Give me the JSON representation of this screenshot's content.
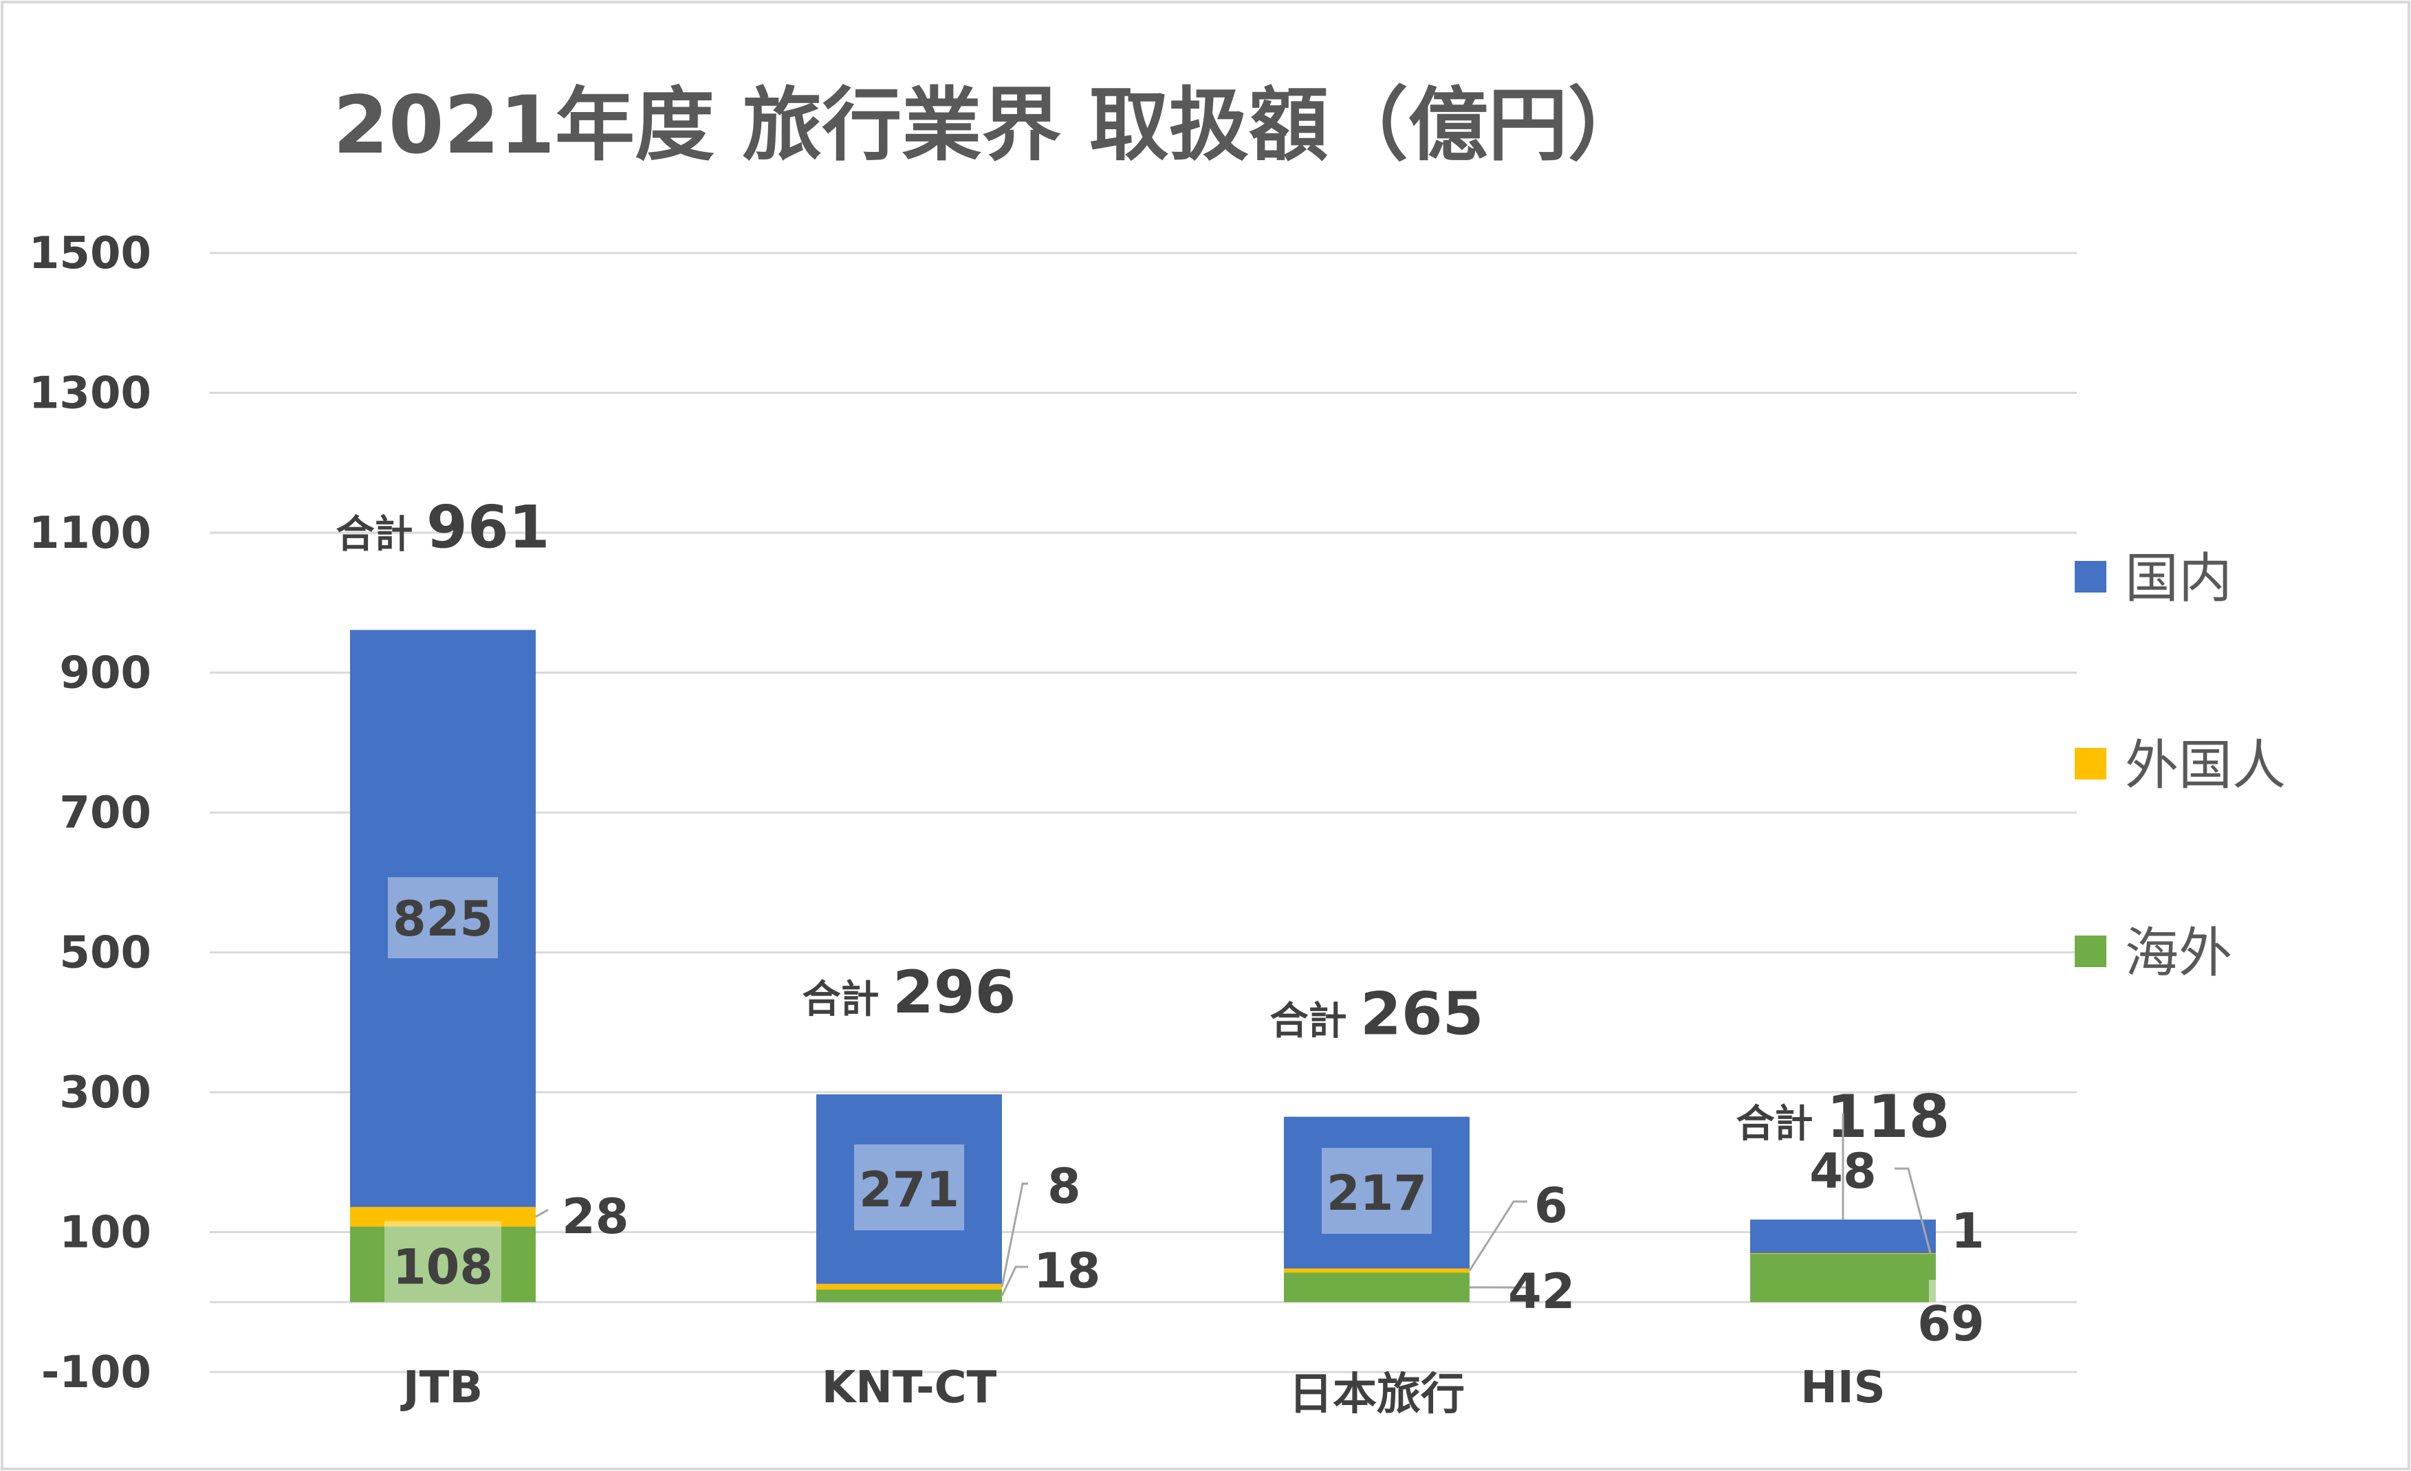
{
  "chart_data": {
    "type": "bar",
    "stacked": true,
    "title": "2021年度 旅行業界 取扱額（億円）",
    "categories": [
      "JTB",
      "KNT-CT",
      "日本旅行",
      "HIS"
    ],
    "series": [
      {
        "name": "海外",
        "color": "#70AD47",
        "values": [
          108,
          18,
          42,
          69
        ]
      },
      {
        "name": "外国人",
        "color": "#FFC000",
        "values": [
          28,
          8,
          6,
          1
        ]
      },
      {
        "name": "国内",
        "color": "#4472C4",
        "values": [
          825,
          271,
          217,
          48
        ]
      }
    ],
    "totals": [
      961,
      296,
      265,
      118
    ],
    "total_prefix": "合計",
    "ylim": [
      -100,
      1500
    ],
    "yticks": [
      -100,
      100,
      300,
      500,
      700,
      900,
      1100,
      1300,
      1500
    ],
    "grid": true,
    "legend_position": "right",
    "legend_order": [
      "国内",
      "外国人",
      "海外"
    ]
  }
}
